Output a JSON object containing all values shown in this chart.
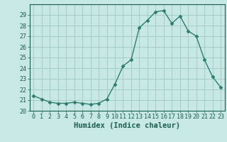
{
  "title": "",
  "xlabel": "Humidex (Indice chaleur)",
  "ylabel": "",
  "x": [
    0,
    1,
    2,
    3,
    4,
    5,
    6,
    7,
    8,
    9,
    10,
    11,
    12,
    13,
    14,
    15,
    16,
    17,
    18,
    19,
    20,
    21,
    22,
    23
  ],
  "y": [
    21.4,
    21.1,
    20.8,
    20.7,
    20.7,
    20.8,
    20.7,
    20.6,
    20.7,
    21.1,
    22.5,
    24.2,
    24.8,
    27.8,
    28.5,
    29.3,
    29.4,
    28.2,
    28.9,
    27.5,
    27.0,
    24.8,
    23.2,
    22.2
  ],
  "line_color": "#2e7d6e",
  "marker": "D",
  "markersize": 2.5,
  "linewidth": 1.0,
  "bg_color": "#c8e8e5",
  "grid_color": "#9fc8c4",
  "ylim": [
    20,
    30
  ],
  "xlim": [
    -0.5,
    23.5
  ],
  "yticks": [
    20,
    21,
    22,
    23,
    24,
    25,
    26,
    27,
    28,
    29
  ],
  "xticks": [
    0,
    1,
    2,
    3,
    4,
    5,
    6,
    7,
    8,
    9,
    10,
    11,
    12,
    13,
    14,
    15,
    16,
    17,
    18,
    19,
    20,
    21,
    22,
    23
  ],
  "tick_fontsize": 6,
  "xlabel_fontsize": 7.5,
  "axis_color": "#1a5e52"
}
